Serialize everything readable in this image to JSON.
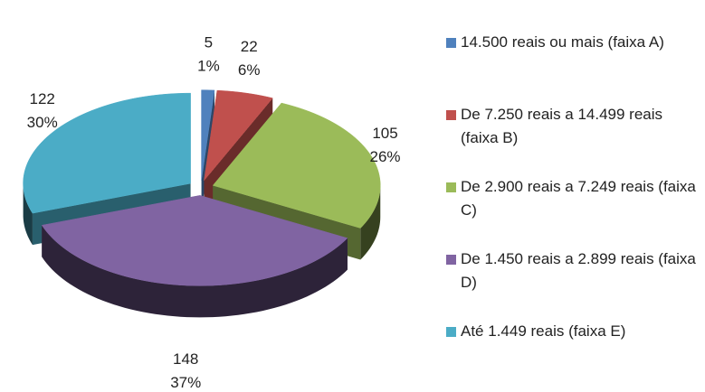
{
  "chart_data": {
    "type": "pie3d",
    "categories": [
      "14.500 reais ou mais (faixa A)",
      "De 7.250 reais a 14.499 reais (faixa B)",
      "De 2.900 reais a 7.249 reais (faixa C)",
      "De 1.450 reais a 2.899 reais (faixa D)",
      "Até 1.449 reais (faixa E)"
    ],
    "values": [
      5,
      22,
      105,
      148,
      122
    ],
    "percent_labels": [
      "1%",
      "6%",
      "26%",
      "37%",
      "30%"
    ],
    "colors": [
      "#4f81bd",
      "#c0504d",
      "#9bbb59",
      "#8064a2",
      "#4bacc6"
    ],
    "legend": "right"
  }
}
